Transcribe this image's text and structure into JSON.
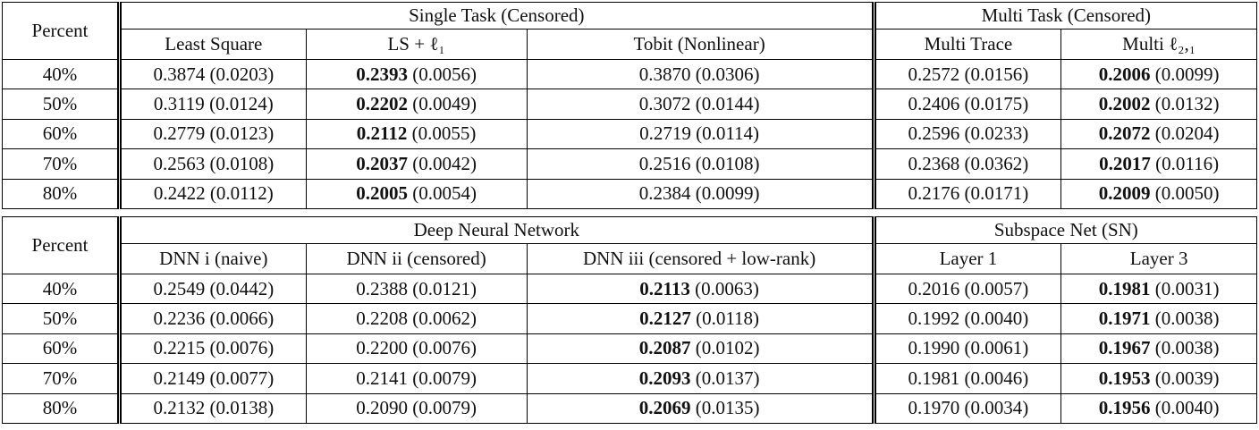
{
  "tables": [
    {
      "row_header": "Percent",
      "groups": [
        {
          "title": "Single Task (Censored)",
          "columns": [
            "Least Square",
            "LS + ℓ₁",
            "Tobit (Nonlinear)"
          ]
        },
        {
          "title": "Multi Task (Censored)",
          "columns": [
            "Multi Trace",
            "Multi ℓ₂,₁"
          ]
        }
      ],
      "rows": [
        {
          "label": "40%",
          "cells": [
            {
              "mean": "0.3874",
              "sd": "(0.0203)"
            },
            {
              "mean": "0.2393",
              "sd": "(0.0056)",
              "bold": true
            },
            {
              "mean": "0.3870",
              "sd": "(0.0306)"
            },
            {
              "mean": "0.2572",
              "sd": "(0.0156)"
            },
            {
              "mean": "0.2006",
              "sd": "(0.0099)",
              "bold": true
            }
          ]
        },
        {
          "label": "50%",
          "cells": [
            {
              "mean": "0.3119",
              "sd": "(0.0124)"
            },
            {
              "mean": "0.2202",
              "sd": "(0.0049)",
              "bold": true
            },
            {
              "mean": "0.3072",
              "sd": "(0.0144)"
            },
            {
              "mean": "0.2406",
              "sd": "(0.0175)"
            },
            {
              "mean": "0.2002",
              "sd": "(0.0132)",
              "bold": true
            }
          ]
        },
        {
          "label": "60%",
          "cells": [
            {
              "mean": "0.2779",
              "sd": "(0.0123)"
            },
            {
              "mean": "0.2112",
              "sd": "(0.0055)",
              "bold": true
            },
            {
              "mean": "0.2719",
              "sd": "(0.0114)"
            },
            {
              "mean": "0.2596",
              "sd": "(0.0233)"
            },
            {
              "mean": "0.2072",
              "sd": "(0.0204)",
              "bold": true
            }
          ]
        },
        {
          "label": "70%",
          "cells": [
            {
              "mean": "0.2563",
              "sd": "(0.0108)"
            },
            {
              "mean": "0.2037",
              "sd": "(0.0042)",
              "bold": true
            },
            {
              "mean": "0.2516",
              "sd": "(0.0108)"
            },
            {
              "mean": "0.2368",
              "sd": "(0.0362)"
            },
            {
              "mean": "0.2017",
              "sd": "(0.0116)",
              "bold": true
            }
          ]
        },
        {
          "label": "80%",
          "cells": [
            {
              "mean": "0.2422",
              "sd": "(0.0112)"
            },
            {
              "mean": "0.2005",
              "sd": "(0.0054)",
              "bold": true
            },
            {
              "mean": "0.2384",
              "sd": "(0.0099)"
            },
            {
              "mean": "0.2176",
              "sd": "(0.0171)"
            },
            {
              "mean": "0.2009",
              "sd": "(0.0050)",
              "bold": true
            }
          ]
        }
      ]
    },
    {
      "row_header": "Percent",
      "groups": [
        {
          "title": "Deep Neural Network",
          "columns": [
            "DNN i (naive)",
            "DNN ii (censored)",
            "DNN iii (censored + low-rank)"
          ]
        },
        {
          "title": "Subspace Net (SN)",
          "columns": [
            "Layer 1",
            "Layer 3"
          ]
        }
      ],
      "rows": [
        {
          "label": "40%",
          "cells": [
            {
              "mean": "0.2549",
              "sd": "(0.0442)"
            },
            {
              "mean": "0.2388",
              "sd": "(0.0121)"
            },
            {
              "mean": "0.2113",
              "sd": "(0.0063)",
              "bold": true
            },
            {
              "mean": "0.2016",
              "sd": "(0.0057)"
            },
            {
              "mean": "0.1981",
              "sd": "(0.0031)",
              "bold": true
            }
          ]
        },
        {
          "label": "50%",
          "cells": [
            {
              "mean": "0.2236",
              "sd": "(0.0066)"
            },
            {
              "mean": "0.2208",
              "sd": "(0.0062)"
            },
            {
              "mean": "0.2127",
              "sd": "(0.0118)",
              "bold": true
            },
            {
              "mean": "0.1992",
              "sd": "(0.0040)"
            },
            {
              "mean": "0.1971",
              "sd": "(0.0038)",
              "bold": true
            }
          ]
        },
        {
          "label": "60%",
          "cells": [
            {
              "mean": "0.2215",
              "sd": "(0.0076)"
            },
            {
              "mean": "0.2200",
              "sd": "(0.0076)"
            },
            {
              "mean": "0.2087",
              "sd": "(0.0102)",
              "bold": true
            },
            {
              "mean": "0.1990",
              "sd": "(0.0061)"
            },
            {
              "mean": "0.1967",
              "sd": "(0.0038)",
              "bold": true
            }
          ]
        },
        {
          "label": "70%",
          "cells": [
            {
              "mean": "0.2149",
              "sd": "(0.0077)"
            },
            {
              "mean": "0.2141",
              "sd": "(0.0079)"
            },
            {
              "mean": "0.2093",
              "sd": "(0.0137)",
              "bold": true
            },
            {
              "mean": "0.1981",
              "sd": "(0.0046)"
            },
            {
              "mean": "0.1953",
              "sd": "(0.0039)",
              "bold": true
            }
          ]
        },
        {
          "label": "80%",
          "cells": [
            {
              "mean": "0.2132",
              "sd": "(0.0138)"
            },
            {
              "mean": "0.2090",
              "sd": "(0.0079)"
            },
            {
              "mean": "0.2069",
              "sd": "(0.0135)",
              "bold": true
            },
            {
              "mean": "0.1970",
              "sd": "(0.0034)"
            },
            {
              "mean": "0.1956",
              "sd": "(0.0040)",
              "bold": true
            }
          ]
        }
      ]
    }
  ]
}
